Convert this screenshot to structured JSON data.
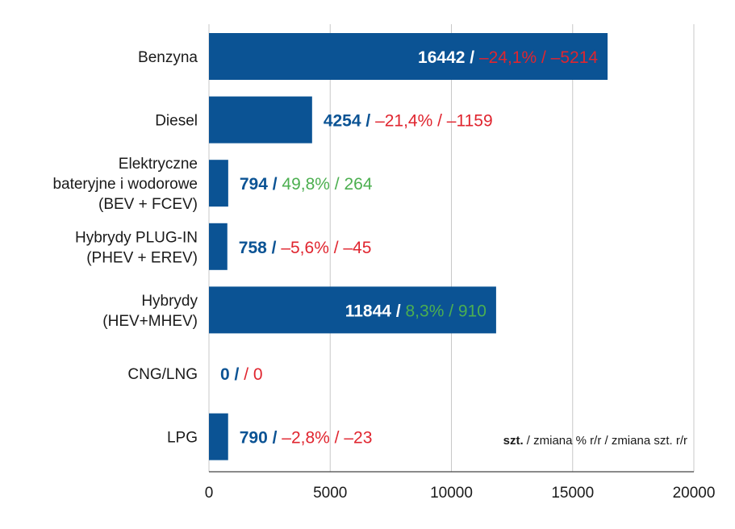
{
  "colors": {
    "bar": "#0b5394",
    "count_on_bar": "#ffffff",
    "count_off_bar": "#0b5394",
    "negative": "#e0252f",
    "positive": "#4caf50",
    "grid": "#c8c8c8"
  },
  "chart_data": {
    "type": "bar",
    "orientation": "horizontal",
    "xlim": [
      0,
      20000
    ],
    "x_ticks": [
      "0",
      "5000",
      "10000",
      "15000",
      "20000"
    ],
    "grid": true,
    "categories": [
      [
        "Benzyna"
      ],
      [
        "Diesel"
      ],
      [
        "Elektryczne",
        "bateryjne i wodorowe",
        "(BEV + FCEV)"
      ],
      [
        "Hybrydy PLUG-IN",
        "(PHEV + EREV)"
      ],
      [
        "Hybrydy",
        "(HEV+MHEV)"
      ],
      [
        "CNG/LNG"
      ],
      [
        "LPG"
      ]
    ],
    "values": [
      16442,
      4254,
      794,
      758,
      11844,
      0,
      790
    ],
    "labels": [
      {
        "count": "16442",
        "sep": " / ",
        "change": "–24,1% / –5214",
        "trend": "negative",
        "inside": true
      },
      {
        "count": "4254",
        "sep": " / ",
        "change": "–21,4% / –1159",
        "trend": "negative",
        "inside": false
      },
      {
        "count": "794",
        "sep": " / ",
        "change": "49,8% / 264",
        "trend": "positive",
        "inside": false
      },
      {
        "count": "758",
        "sep": " / ",
        "change": "–5,6% / –45",
        "trend": "negative",
        "inside": false
      },
      {
        "count": "11844",
        "sep": " / ",
        "change": "8,3% / 910",
        "trend": "positive",
        "inside": true
      },
      {
        "count": "0",
        "sep": " /   ",
        "change": "/ 0",
        "trend": "negative",
        "inside": false
      },
      {
        "count": "790",
        "sep": " / ",
        "change": "–2,8% / –23",
        "trend": "negative",
        "inside": false
      }
    ],
    "legend_note": {
      "bold": "szt.",
      "rest": " / zmiana % r/r / zmiana szt. r/r"
    }
  }
}
